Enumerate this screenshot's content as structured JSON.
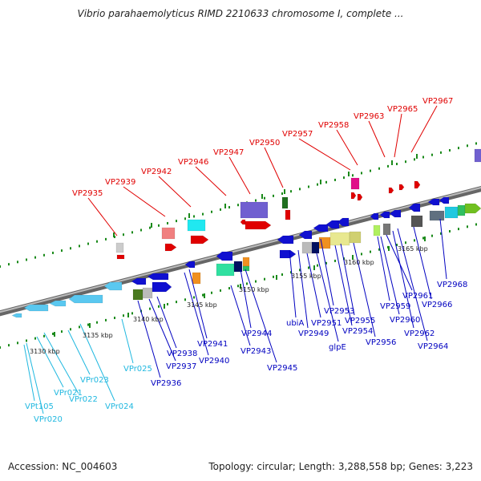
{
  "title": "Vibrio parahaemolyticus RIMD 2210633 chromosome I, complete ...",
  "footer": {
    "accession": "Accession: NC_004603",
    "summary": "Topology: circular; Length: 3,288,558 bp; Genes: 3,223"
  },
  "colors": {
    "upper_label": "#e00000",
    "lower_label_protein": "#0000c0",
    "lower_label_rna": "#20b8e0",
    "backbone": "#888888",
    "tick": "#1a8a1a"
  },
  "scale_labels": [
    "3130 kbp",
    "3135 kbp",
    "3140 kbp",
    "3145 kbp",
    "3150 kbp",
    "3155 kbp",
    "3160 kbp",
    "3165 kbp"
  ],
  "upper_labels": [
    "VP2935",
    "VP2939",
    "VP2942",
    "VP2946",
    "VP2947",
    "VP2950",
    "VP2957",
    "VP2958",
    "VP2963",
    "VP2965",
    "VP2967"
  ],
  "lower_labels": [
    {
      "text": "VPt105",
      "kind": "rna"
    },
    {
      "text": "VPr020",
      "kind": "rna"
    },
    {
      "text": "VPr021",
      "kind": "rna"
    },
    {
      "text": "VPr022",
      "kind": "rna"
    },
    {
      "text": "VPr023",
      "kind": "rna"
    },
    {
      "text": "VPr024",
      "kind": "rna"
    },
    {
      "text": "VPr025",
      "kind": "rna"
    },
    {
      "text": "VP2936",
      "kind": "protein"
    },
    {
      "text": "VP2937",
      "kind": "protein"
    },
    {
      "text": "VP2938",
      "kind": "protein"
    },
    {
      "text": "VP2940",
      "kind": "protein"
    },
    {
      "text": "VP2941",
      "kind": "protein"
    },
    {
      "text": "VP2943",
      "kind": "protein"
    },
    {
      "text": "VP2944",
      "kind": "protein"
    },
    {
      "text": "VP2945",
      "kind": "protein"
    },
    {
      "text": "ubiA",
      "kind": "protein"
    },
    {
      "text": "VP2949",
      "kind": "protein"
    },
    {
      "text": "VP2951",
      "kind": "protein"
    },
    {
      "text": "glpE",
      "kind": "protein"
    },
    {
      "text": "VP2953",
      "kind": "protein"
    },
    {
      "text": "VP2954",
      "kind": "protein"
    },
    {
      "text": "VP2955",
      "kind": "protein"
    },
    {
      "text": "VP2956",
      "kind": "protein"
    },
    {
      "text": "VP2959",
      "kind": "protein"
    },
    {
      "text": "VP2960",
      "kind": "protein"
    },
    {
      "text": "VP2961",
      "kind": "protein"
    },
    {
      "text": "VP2962",
      "kind": "protein"
    },
    {
      "text": "VP2964",
      "kind": "protein"
    },
    {
      "text": "VP2966",
      "kind": "protein"
    },
    {
      "text": "VP2968",
      "kind": "protein"
    }
  ]
}
